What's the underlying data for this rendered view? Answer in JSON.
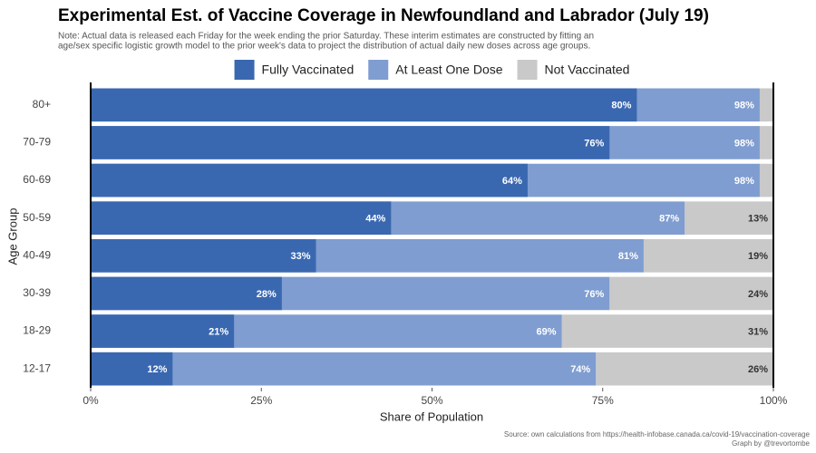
{
  "chart_data": {
    "type": "bar",
    "orientation": "horizontal",
    "title": "Experimental Est. of Vaccine Coverage in Newfoundland and Labrador (July 19)",
    "subtitle": [
      "Note: Actual data is released each Friday for the week ending the prior Saturday. These interim estimates are constructed by fitting an",
      "age/sex specific logistic growth model to the prior week's data to project the distribution of actual daily new doses across age groups."
    ],
    "source": [
      "Source: own calculations from https://health-infobase.canada.ca/covid-19/vaccination-coverage",
      "Graph by @trevortombe"
    ],
    "xlabel": "Share of Population",
    "ylabel": "Age Group",
    "categories": [
      "80+",
      "70-79",
      "60-69",
      "50-59",
      "40-49",
      "30-39",
      "18-29",
      "12-17"
    ],
    "xlim": [
      0,
      100
    ],
    "xticks": [
      {
        "value": 0,
        "label": "0%"
      },
      {
        "value": 25,
        "label": "25%"
      },
      {
        "value": 50,
        "label": "50%"
      },
      {
        "value": 75,
        "label": "75%"
      },
      {
        "value": 100,
        "label": "100%"
      }
    ],
    "legend": "top",
    "series": [
      {
        "name": "Fully Vaccinated",
        "color": "#3a68b0",
        "anchor": "start",
        "values": [
          80,
          76,
          64,
          44,
          33,
          28,
          21,
          12
        ],
        "value_labels": [
          "80%",
          "76%",
          "64%",
          "44%",
          "33%",
          "28%",
          "21%",
          "12%"
        ]
      },
      {
        "name": "At Least One Dose",
        "color": "#7f9dd0",
        "anchor": "start",
        "values": [
          98,
          98,
          98,
          87,
          81,
          76,
          69,
          74
        ],
        "value_labels": [
          "98%",
          "98%",
          "98%",
          "87%",
          "81%",
          "76%",
          "69%",
          "74%"
        ]
      },
      {
        "name": "Not Vaccinated",
        "color": "#c9c9c9",
        "anchor": "end",
        "values": [
          2,
          2,
          2,
          13,
          19,
          24,
          31,
          26
        ],
        "value_labels": [
          null,
          null,
          null,
          "13%",
          "19%",
          "24%",
          "31%",
          "26%"
        ]
      }
    ]
  }
}
